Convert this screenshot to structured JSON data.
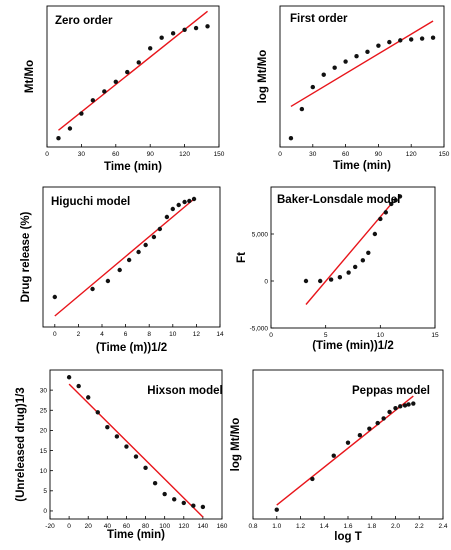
{
  "colors": {
    "fit_line": "#e8151b",
    "points": "#111111",
    "axis": "#000000",
    "background": "#ffffff"
  },
  "chart_data": [
    {
      "type": "scatter",
      "title": "Zero order",
      "xlabel": "Time (min)",
      "ylabel": "Mt/Mo",
      "xlim": [
        0,
        150
      ],
      "ylim": [
        0,
        16
      ],
      "xticks": [
        0,
        30,
        60,
        90,
        120,
        150
      ],
      "yticks": [],
      "tick_labels_x": [
        "0",
        "30",
        "60",
        "90",
        "120",
        "150"
      ],
      "tick_labels_y": [],
      "legend": "none",
      "grid": false,
      "series": [
        {
          "x": [
            10,
            20,
            30,
            40,
            50,
            60,
            70,
            80,
            90,
            100,
            110,
            120,
            130,
            140
          ],
          "y": [
            1.0,
            2.1,
            3.8,
            5.3,
            6.3,
            7.4,
            8.5,
            9.6,
            11.2,
            12.4,
            12.9,
            13.3,
            13.5,
            13.7
          ]
        }
      ],
      "fit_line": {
        "x": [
          10,
          140
        ],
        "y": [
          1.9,
          15.4
        ]
      }
    },
    {
      "type": "scatter",
      "title": "First order",
      "xlabel": "Time (min)",
      "ylabel": "log Mt/Mo",
      "xlim": [
        0,
        150
      ],
      "ylim": [
        -0.1,
        1.5
      ],
      "xticks": [
        0,
        30,
        60,
        90,
        120,
        150
      ],
      "yticks": [],
      "tick_labels_x": [
        "0",
        "30",
        "60",
        "90",
        "120",
        "150"
      ],
      "tick_labels_y": [],
      "legend": "none",
      "grid": false,
      "series": [
        {
          "x": [
            10,
            20,
            30,
            40,
            50,
            60,
            70,
            80,
            90,
            100,
            110,
            120,
            130,
            140
          ],
          "y": [
            0.0,
            0.33,
            0.58,
            0.72,
            0.8,
            0.87,
            0.93,
            0.98,
            1.05,
            1.09,
            1.11,
            1.12,
            1.13,
            1.14
          ]
        }
      ],
      "fit_line": {
        "x": [
          10,
          140
        ],
        "y": [
          0.36,
          1.33
        ]
      }
    },
    {
      "type": "scatter",
      "title": "Higuchi model",
      "xlabel": "(Time (m))1/2",
      "ylabel": "Drug release (%)",
      "xlim": [
        -1,
        14
      ],
      "ylim": [
        -30,
        110
      ],
      "xticks": [
        0,
        2,
        4,
        6,
        8,
        10,
        12,
        14
      ],
      "yticks": [],
      "tick_labels_x": [
        "0",
        "2",
        "4",
        "6",
        "8",
        "10",
        "12",
        "14"
      ],
      "tick_labels_y": [],
      "legend": "none",
      "grid": false,
      "series": [
        {
          "x": [
            0,
            3.2,
            4.5,
            5.5,
            6.3,
            7.1,
            7.7,
            8.4,
            8.9,
            9.5,
            10.0,
            10.5,
            11.0,
            11.4,
            11.8
          ],
          "y": [
            0,
            8,
            16,
            27,
            37,
            45,
            52,
            60,
            68,
            80,
            88,
            92,
            95,
            96,
            98
          ]
        }
      ],
      "fit_line": {
        "x": [
          0,
          11.8
        ],
        "y": [
          -19,
          98
        ]
      }
    },
    {
      "type": "scatter",
      "title": "Baker-Lonsdale  model",
      "xlabel": "(Time (min))1/2",
      "ylabel": "Ft",
      "xlim": [
        0,
        15
      ],
      "ylim": [
        -5000,
        10000
      ],
      "xticks": [
        0,
        5,
        10,
        15
      ],
      "yticks": [
        -5000,
        0,
        5000
      ],
      "tick_labels_x": [
        "0",
        "5",
        "10",
        "15"
      ],
      "tick_labels_y": [
        "-5,000",
        "0",
        "5,000"
      ],
      "legend": "none",
      "grid": false,
      "series": [
        {
          "x": [
            3.2,
            4.5,
            5.5,
            6.3,
            7.1,
            7.7,
            8.4,
            8.9,
            9.5,
            10.0,
            10.5,
            11.0,
            11.4,
            11.8
          ],
          "y": [
            0,
            0,
            150,
            400,
            900,
            1500,
            2200,
            3000,
            5000,
            6600,
            7300,
            8200,
            8600,
            9000
          ]
        }
      ],
      "fit_line": {
        "x": [
          3.2,
          11.0
        ],
        "y": [
          -2500,
          8200
        ]
      }
    },
    {
      "type": "scatter",
      "title": "Hixson model",
      "xlabel": "Time (min)",
      "ylabel": "(Unreleased drug)1/3",
      "xlim": [
        -20,
        160
      ],
      "ylim": [
        -2,
        35
      ],
      "xticks": [
        -20,
        0,
        20,
        40,
        60,
        80,
        100,
        120,
        140,
        160
      ],
      "yticks": [
        0,
        5,
        10,
        15,
        20,
        25,
        30
      ],
      "tick_labels_x": [
        "-20",
        "0",
        "20",
        "40",
        "60",
        "80",
        "100",
        "120",
        "140",
        "160"
      ],
      "tick_labels_y": [
        "0",
        "5",
        "10",
        "15",
        "20",
        "25",
        "30"
      ],
      "legend": "none",
      "grid": false,
      "series": [
        {
          "x": [
            0,
            10,
            20,
            30,
            40,
            50,
            60,
            70,
            80,
            90,
            100,
            110,
            120,
            130,
            140
          ],
          "y": [
            33.2,
            31.0,
            28.2,
            24.5,
            20.8,
            18.5,
            16.0,
            13.5,
            10.7,
            6.9,
            4.2,
            2.9,
            2.0,
            1.3,
            1.0
          ]
        }
      ],
      "fit_line": {
        "x": [
          0,
          140
        ],
        "y": [
          31.5,
          -1.5
        ]
      }
    },
    {
      "type": "scatter",
      "title": "Peppas model",
      "xlabel": "log T",
      "ylabel": "log Mt/Mo",
      "xlim": [
        0.8,
        2.4
      ],
      "ylim": [
        -0.1,
        1.5
      ],
      "xticks": [
        0.8,
        1.0,
        1.2,
        1.4,
        1.6,
        1.8,
        2.0,
        2.2,
        2.4
      ],
      "yticks": [],
      "tick_labels_x": [
        "0.8",
        "1.0",
        "1.2",
        "1.4",
        "1.6",
        "1.8",
        "2.0",
        "2.2",
        "2.4"
      ],
      "tick_labels_y": [],
      "legend": "none",
      "grid": false,
      "series": [
        {
          "x": [
            1.0,
            1.3,
            1.48,
            1.6,
            1.7,
            1.78,
            1.85,
            1.9,
            1.95,
            2.0,
            2.04,
            2.08,
            2.11,
            2.15
          ],
          "y": [
            0.0,
            0.33,
            0.58,
            0.72,
            0.8,
            0.87,
            0.93,
            0.98,
            1.05,
            1.09,
            1.11,
            1.12,
            1.13,
            1.14
          ]
        }
      ],
      "fit_line": {
        "x": [
          1.0,
          2.15
        ],
        "y": [
          0.05,
          1.22
        ]
      }
    }
  ]
}
